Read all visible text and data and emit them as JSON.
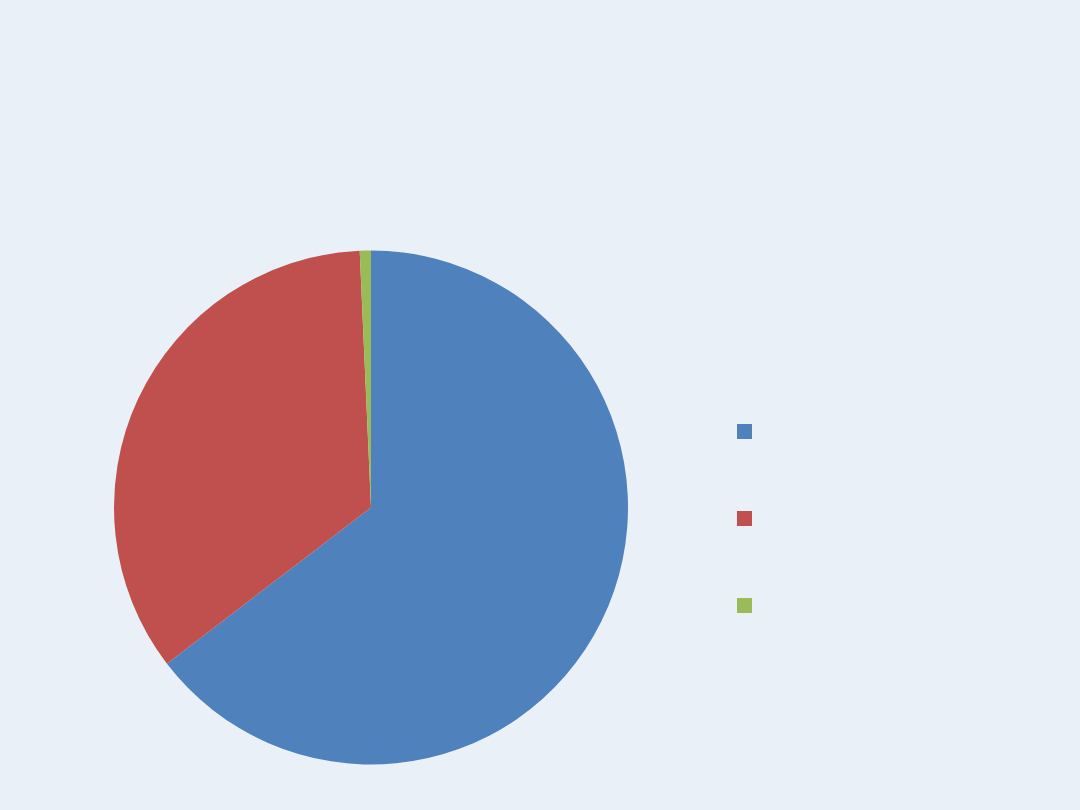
{
  "chart_data": {
    "type": "pie",
    "categories": [
      null,
      null,
      null
    ],
    "values": [
      64.6,
      34.7,
      0.7
    ],
    "colors": [
      "#4f81bd",
      "#c0504d",
      "#9bbb59"
    ]
  }
}
